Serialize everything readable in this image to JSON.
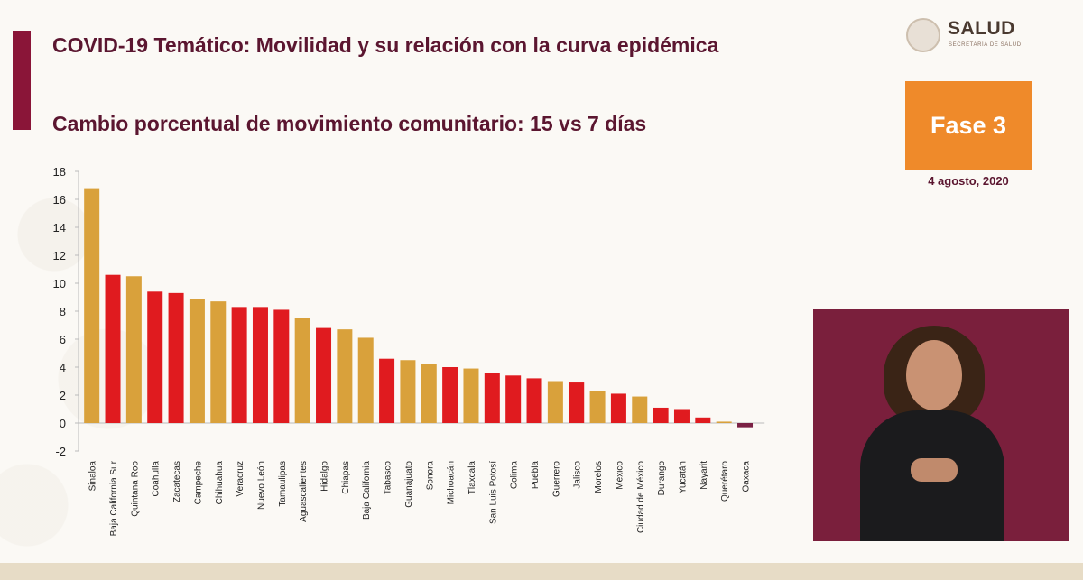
{
  "title": "COVID-19 Temático: Movilidad y su relación con la curva epidémica",
  "subtitle": "Cambio porcentual de movimiento comunitario: 15 vs 7 días",
  "logo": {
    "name": "SALUD",
    "sub": "SECRETARÍA DE SALUD"
  },
  "phase": "Fase 3",
  "date": "4 agosto, 2020",
  "colors": {
    "red": "#e01b1f",
    "gold": "#d9a13b",
    "purple": "#7a2144",
    "accent": "#8a1538",
    "phase_box": "#ef8a2a"
  },
  "chart_data": {
    "type": "bar",
    "title": "",
    "xlabel": "",
    "ylabel": "",
    "ylim": [
      -2,
      18
    ],
    "yticks": [
      18,
      16,
      14,
      12,
      10,
      8,
      6,
      4,
      2,
      0,
      -2
    ],
    "grid": false,
    "categories": [
      "Sinaloa",
      "Baja California Sur",
      "Quintana Roo",
      "Coahuila",
      "Zacatecas",
      "Campeche",
      "Chihuahua",
      "Veracruz",
      "Nuevo León",
      "Tamaulipas",
      "Aguascalientes",
      "Hidalgo",
      "Chiapas",
      "Baja California",
      "Tabasco",
      "Guanajuato",
      "Sonora",
      "Michoacán",
      "Tlaxcala",
      "San Luis Potosí",
      "Colima",
      "Puebla",
      "Guerrero",
      "Jalisco",
      "Morelos",
      "México",
      "Ciudad de México",
      "Durango",
      "Yucatán",
      "Nayarit",
      "Querétaro",
      "Oaxaca"
    ],
    "values": [
      16.8,
      10.6,
      10.5,
      9.4,
      9.3,
      8.9,
      8.7,
      8.3,
      8.3,
      8.1,
      7.5,
      6.8,
      6.7,
      6.1,
      4.6,
      4.5,
      4.2,
      4.0,
      3.9,
      3.6,
      3.4,
      3.2,
      3.0,
      2.9,
      2.3,
      2.1,
      1.9,
      1.1,
      1.0,
      0.4,
      0.1,
      -0.3
    ],
    "bar_colors": [
      "gold",
      "red",
      "gold",
      "red",
      "red",
      "gold",
      "gold",
      "red",
      "red",
      "red",
      "gold",
      "red",
      "gold",
      "gold",
      "red",
      "gold",
      "gold",
      "red",
      "gold",
      "red",
      "red",
      "red",
      "gold",
      "red",
      "gold",
      "red",
      "gold",
      "red",
      "red",
      "red",
      "gold",
      "purple"
    ]
  }
}
